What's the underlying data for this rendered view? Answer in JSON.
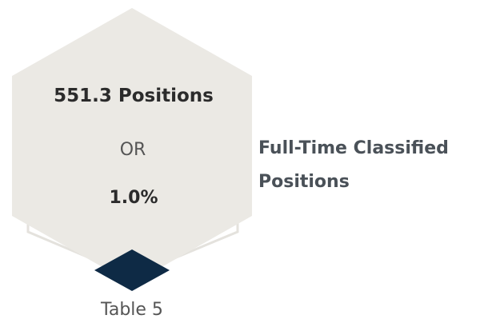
{
  "hexagon": {
    "value": "551.3 Positions",
    "separator": "OR",
    "percent": "1.0%"
  },
  "label": "Full-Time Classified Positions",
  "caption": "Table 5"
}
